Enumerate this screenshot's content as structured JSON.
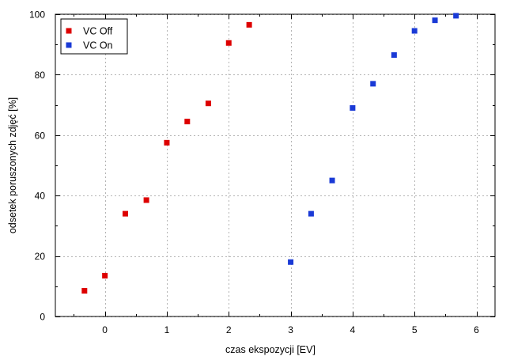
{
  "chart_data": {
    "type": "scatter",
    "title": "",
    "xlabel": "czas ekspozycji [EV]",
    "ylabel": "odsetek poruszonych zdjęć [%]",
    "xlim": [
      -0.8,
      6.3
    ],
    "ylim": [
      0,
      100
    ],
    "x_ticks": [
      0,
      1,
      2,
      3,
      4,
      5,
      6
    ],
    "y_ticks": [
      0,
      20,
      40,
      60,
      80,
      100
    ],
    "grid": true,
    "legend_position": "top-left",
    "series": [
      {
        "name": "VC Off",
        "color": "#dd0000",
        "marker": "square",
        "x": [
          -0.33,
          0,
          0.33,
          0.67,
          1,
          1.33,
          1.67,
          2,
          2.33
        ],
        "y": [
          8.5,
          13.5,
          34,
          38.5,
          57.5,
          64.5,
          70.5,
          90.5,
          96.5
        ]
      },
      {
        "name": "VC On",
        "color": "#1a3ad6",
        "marker": "square",
        "x": [
          3,
          3.33,
          3.67,
          4,
          4.33,
          4.67,
          5,
          5.33,
          5.67
        ],
        "y": [
          18,
          34,
          45,
          69,
          77,
          86.5,
          94.5,
          98,
          99.5
        ]
      }
    ]
  }
}
